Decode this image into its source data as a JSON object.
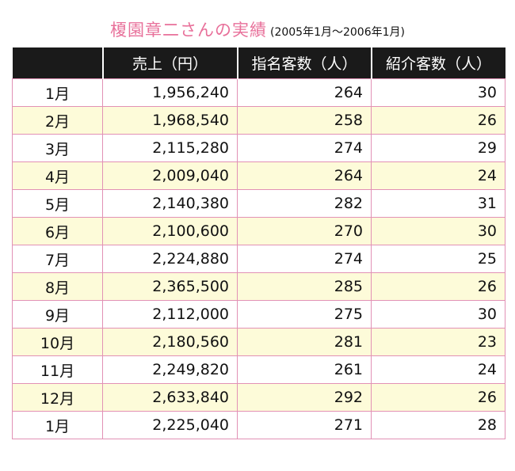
{
  "title": {
    "main": "榎園章二さんの実績",
    "sub": "(2005年1月〜2006年1月)"
  },
  "table": {
    "headers": [
      "",
      "売上（円）",
      "指名客数（人）",
      "紹介客数（人）"
    ],
    "rows": [
      {
        "month": "1月",
        "sales": "1,956,240",
        "named": "264",
        "referred": "30"
      },
      {
        "month": "2月",
        "sales": "1,968,540",
        "named": "258",
        "referred": "26"
      },
      {
        "month": "3月",
        "sales": "2,115,280",
        "named": "274",
        "referred": "29"
      },
      {
        "month": "4月",
        "sales": "2,009,040",
        "named": "264",
        "referred": "24"
      },
      {
        "month": "5月",
        "sales": "2,140,380",
        "named": "282",
        "referred": "31"
      },
      {
        "month": "6月",
        "sales": "2,100,600",
        "named": "270",
        "referred": "30"
      },
      {
        "month": "7月",
        "sales": "2,224,880",
        "named": "274",
        "referred": "25"
      },
      {
        "month": "8月",
        "sales": "2,365,500",
        "named": "285",
        "referred": "26"
      },
      {
        "month": "9月",
        "sales": "2,112,000",
        "named": "275",
        "referred": "30"
      },
      {
        "month": "10月",
        "sales": "2,180,560",
        "named": "281",
        "referred": "23"
      },
      {
        "month": "11月",
        "sales": "2,249,820",
        "named": "261",
        "referred": "24"
      },
      {
        "month": "12月",
        "sales": "2,633,840",
        "named": "292",
        "referred": "26"
      },
      {
        "month": "1月",
        "sales": "2,225,040",
        "named": "271",
        "referred": "28"
      }
    ]
  },
  "colors": {
    "title": "#e8709a",
    "header_bg": "#1a1a1a",
    "border": "#e291b5",
    "alt_row": "#fdfbd9"
  }
}
